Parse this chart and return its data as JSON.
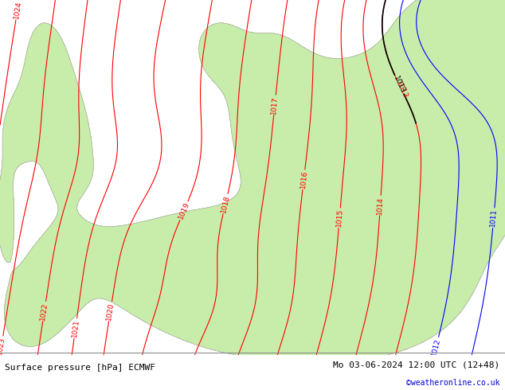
{
  "title_left": "Surface pressure [hPa] ECMWF",
  "title_right": "Mo 03-06-2024 12:00 UTC (12+48)",
  "watermark": "©weatheronline.co.uk",
  "bg_color": "#e0e0e0",
  "land_color": "#c8edaa",
  "coast_color": "#aaaaaa",
  "contour_color_red": "#ff0000",
  "contour_color_blue": "#0000ff",
  "contour_color_black": "#000000",
  "footer_bg": "#d8d8d8",
  "figwidth": 6.34,
  "figheight": 4.9,
  "dpi": 100
}
